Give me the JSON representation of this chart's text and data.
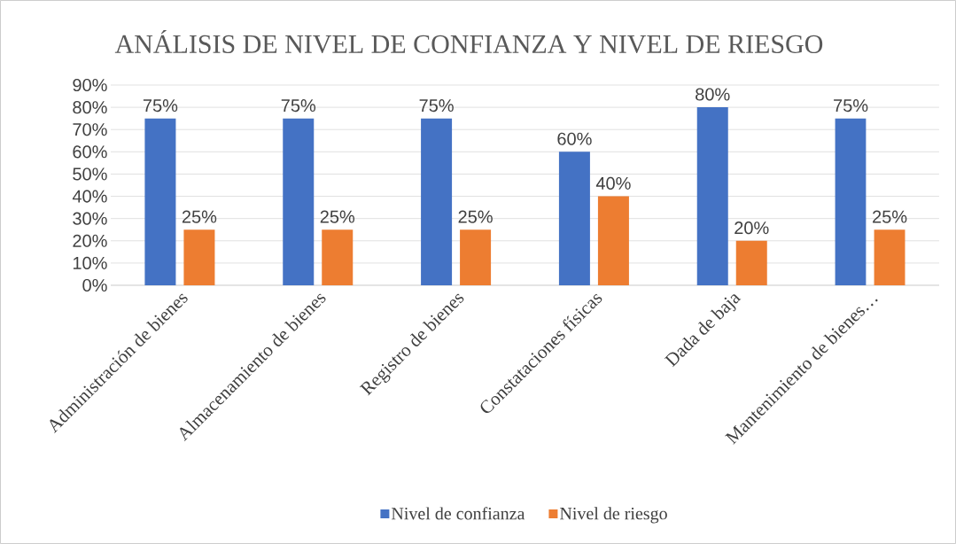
{
  "chart_data": {
    "type": "bar",
    "title": "ANÁLISIS DE NIVEL DE CONFIANZA Y NIVEL DE RIESGO",
    "categories": [
      "Administración de bienes",
      "Almacenamiento de bienes",
      "Registro de bienes",
      "Constataciones físicas",
      "Dada de baja",
      "Mantenimiento de bienes…"
    ],
    "series": [
      {
        "name": "Nivel de confianza",
        "color": "#4472c4",
        "values": [
          75,
          75,
          75,
          60,
          80,
          75
        ],
        "value_labels": [
          "75%",
          "75%",
          "75%",
          "60%",
          "80%",
          "75%"
        ]
      },
      {
        "name": "Nivel de riesgo",
        "color": "#ed7d31",
        "values": [
          25,
          25,
          25,
          40,
          20,
          25
        ],
        "value_labels": [
          "25%",
          "25%",
          "25%",
          "40%",
          "20%",
          "25%"
        ]
      }
    ],
    "ylim": [
      0,
      90
    ],
    "yticks": [
      {
        "value": 0,
        "label": "0%"
      },
      {
        "value": 10,
        "label": "10%"
      },
      {
        "value": 20,
        "label": "20%"
      },
      {
        "value": 30,
        "label": "30%"
      },
      {
        "value": 40,
        "label": "40%"
      },
      {
        "value": 50,
        "label": "50%"
      },
      {
        "value": 60,
        "label": "60%"
      },
      {
        "value": 70,
        "label": "70%"
      },
      {
        "value": 80,
        "label": "80%"
      },
      {
        "value": 90,
        "label": "90%"
      }
    ],
    "grid": "y",
    "legend": "bottom"
  }
}
